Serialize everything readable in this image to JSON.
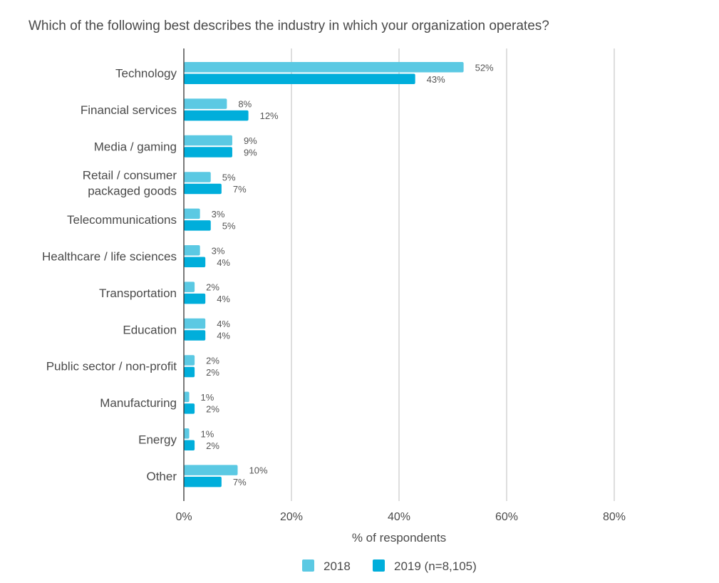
{
  "chart_data": {
    "type": "bar",
    "orientation": "horizontal",
    "title": "Which of the following best describes the industry in which your organization operates?",
    "xlabel": "% of respondents",
    "ylabel": "",
    "xlim": [
      0,
      80
    ],
    "x_ticks": [
      0,
      20,
      40,
      60,
      80
    ],
    "x_tick_labels": [
      "0%",
      "20%",
      "40%",
      "60%",
      "80%"
    ],
    "grid": "vertical",
    "legend_position": "bottom",
    "categories": [
      [
        "Technology"
      ],
      [
        "Financial services"
      ],
      [
        "Media / gaming"
      ],
      [
        "Retail / consumer",
        "packaged goods"
      ],
      [
        "Telecommunications"
      ],
      [
        "Healthcare / life sciences"
      ],
      [
        "Transportation"
      ],
      [
        "Education"
      ],
      [
        "Public sector / non-profit"
      ],
      [
        "Manufacturing"
      ],
      [
        "Energy"
      ],
      [
        "Other"
      ]
    ],
    "series": [
      {
        "name": "2018",
        "color": "#5bc9e3",
        "values": [
          52,
          8,
          9,
          5,
          3,
          3,
          2,
          4,
          2,
          1,
          1,
          10
        ],
        "labels": [
          "52%",
          "8%",
          "9%",
          "5%",
          "3%",
          "3%",
          "2%",
          "4%",
          "2%",
          "1%",
          "1%",
          "10%"
        ]
      },
      {
        "name": "2019 (n=8,105)",
        "color": "#00aedb",
        "values": [
          43,
          12,
          9,
          7,
          5,
          4,
          4,
          4,
          2,
          2,
          2,
          7
        ],
        "labels": [
          "43%",
          "12%",
          "9%",
          "7%",
          "5%",
          "4%",
          "4%",
          "4%",
          "2%",
          "2%",
          "2%",
          "7%"
        ]
      }
    ]
  }
}
